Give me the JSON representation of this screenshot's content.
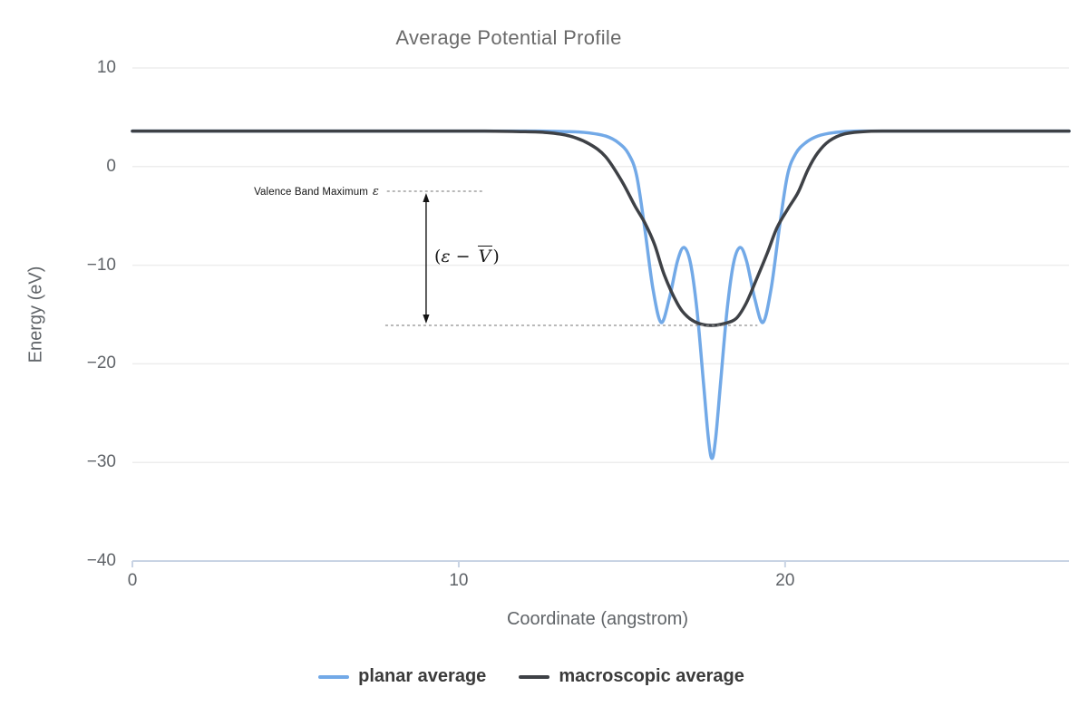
{
  "chart_data": {
    "type": "line",
    "title": "Average Potential Profile",
    "xlabel": "Coordinate (angstrom)",
    "ylabel": "Energy (eV)",
    "xlim": [
      0,
      28.7
    ],
    "ylim": [
      -40,
      10
    ],
    "grid": true,
    "legend_position": "bottom-center",
    "xticks": [
      {
        "v": 0,
        "label": "0"
      },
      {
        "v": 10,
        "label": "10"
      },
      {
        "v": 20,
        "label": "20"
      }
    ],
    "yticks": [
      {
        "v": 10,
        "label": "10"
      },
      {
        "v": 0,
        "label": "0"
      },
      {
        "v": -10,
        "label": "−10"
      },
      {
        "v": -20,
        "label": "−20"
      },
      {
        "v": -30,
        "label": "−30"
      },
      {
        "v": -40,
        "label": "−40"
      }
    ],
    "series": [
      {
        "name": "planar average",
        "color": "#72A9E7",
        "points": [
          [
            0,
            3.6
          ],
          [
            3,
            3.6
          ],
          [
            6,
            3.6
          ],
          [
            9,
            3.6
          ],
          [
            11,
            3.6
          ],
          [
            12.5,
            3.6
          ],
          [
            13.3,
            3.55
          ],
          [
            13.9,
            3.45
          ],
          [
            14.5,
            3.1
          ],
          [
            14.9,
            2.4
          ],
          [
            15.2,
            1.3
          ],
          [
            15.45,
            -0.9
          ],
          [
            15.7,
            -6.3
          ],
          [
            15.95,
            -12.4
          ],
          [
            16.2,
            -15.8
          ],
          [
            16.45,
            -13.4
          ],
          [
            16.7,
            -9.6
          ],
          [
            16.9,
            -8.2
          ],
          [
            17.1,
            -9.8
          ],
          [
            17.3,
            -14.6
          ],
          [
            17.5,
            -22.0
          ],
          [
            17.65,
            -27.6
          ],
          [
            17.76,
            -29.6
          ],
          [
            17.87,
            -27.6
          ],
          [
            18.02,
            -22.0
          ],
          [
            18.22,
            -14.6
          ],
          [
            18.42,
            -9.8
          ],
          [
            18.62,
            -8.2
          ],
          [
            18.82,
            -9.6
          ],
          [
            19.07,
            -13.4
          ],
          [
            19.32,
            -15.8
          ],
          [
            19.57,
            -12.4
          ],
          [
            19.82,
            -6.3
          ],
          [
            20.07,
            -0.9
          ],
          [
            20.32,
            1.3
          ],
          [
            20.62,
            2.4
          ],
          [
            21.0,
            3.1
          ],
          [
            21.5,
            3.45
          ],
          [
            22.2,
            3.6
          ],
          [
            24,
            3.6
          ],
          [
            26,
            3.6
          ],
          [
            28.7,
            3.6
          ]
        ]
      },
      {
        "name": "macroscopic average",
        "color": "#3E4146",
        "points": [
          [
            0,
            3.6
          ],
          [
            3,
            3.6
          ],
          [
            6,
            3.6
          ],
          [
            9,
            3.6
          ],
          [
            10.8,
            3.6
          ],
          [
            11.9,
            3.55
          ],
          [
            12.7,
            3.45
          ],
          [
            13.4,
            3.1
          ],
          [
            14.0,
            2.3
          ],
          [
            14.5,
            1.0
          ],
          [
            15.0,
            -1.5
          ],
          [
            15.4,
            -4.0
          ],
          [
            15.7,
            -5.7
          ],
          [
            16.0,
            -7.9
          ],
          [
            16.3,
            -11.0
          ],
          [
            16.7,
            -13.9
          ],
          [
            17.0,
            -15.2
          ],
          [
            17.35,
            -15.9
          ],
          [
            17.75,
            -16.1
          ],
          [
            18.15,
            -15.9
          ],
          [
            18.5,
            -15.4
          ],
          [
            18.8,
            -13.9
          ],
          [
            19.1,
            -11.6
          ],
          [
            19.45,
            -8.8
          ],
          [
            19.75,
            -6.2
          ],
          [
            20.1,
            -4.2
          ],
          [
            20.4,
            -2.6
          ],
          [
            20.7,
            -0.3
          ],
          [
            21.0,
            1.4
          ],
          [
            21.35,
            2.6
          ],
          [
            21.8,
            3.3
          ],
          [
            22.4,
            3.55
          ],
          [
            23.2,
            3.6
          ],
          [
            25,
            3.6
          ],
          [
            27,
            3.6
          ],
          [
            28.7,
            3.6
          ]
        ]
      }
    ],
    "annotations": {
      "vbm_label": "Valence Band Maximum",
      "vbm_symbol": "ε",
      "vbm_level": -2.5,
      "vbm_line": {
        "x1": 7.8,
        "x2": 10.8,
        "y": -2.5
      },
      "vavg_level": -16.1,
      "vavg_line": {
        "x1": 7.75,
        "x2": 19.15,
        "y": -16.1
      },
      "arrow": {
        "x": 9.0,
        "from": -2.5,
        "to": -16.1
      },
      "delta_label": {
        "open": "(",
        "epsilon": "ε",
        "minus": " − ",
        "v": "V",
        "close": ")"
      }
    },
    "colors": {
      "gridline": "#ededed",
      "axis_line": "#c9d4e4",
      "dashed_line": "#8f8f8f",
      "arrow": "#141414",
      "text": "#5f6368",
      "title": "#6a6a6a",
      "legend_text": "#3a3a3a"
    }
  }
}
